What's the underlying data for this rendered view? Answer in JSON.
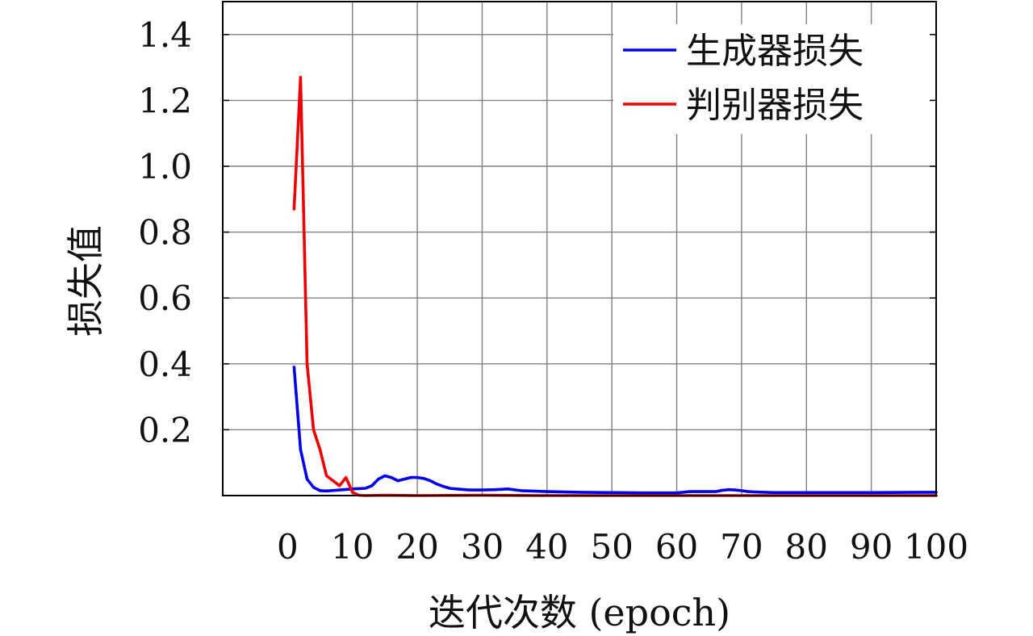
{
  "chart_data": {
    "type": "line",
    "title": "",
    "xlabel": "迭代次数 (epoch)",
    "ylabel": "损失值",
    "xlim": [
      0,
      100
    ],
    "ylim": [
      0,
      1.5
    ],
    "x_ticks": [
      "0",
      "10",
      "20",
      "30",
      "40",
      "50",
      "60",
      "70",
      "80",
      "90",
      "100"
    ],
    "y_ticks": [
      "0.2",
      "0.4",
      "0.6",
      "0.8",
      "1.0",
      "1.2",
      "1.4"
    ],
    "grid": true,
    "legend": {
      "position": "top-right",
      "entries": [
        "生成器损失",
        "判别器损失"
      ]
    },
    "series": [
      {
        "name": "生成器损失",
        "color": "#0000ee",
        "x": [
          1,
          2,
          3,
          4,
          5,
          6,
          8,
          10,
          12,
          13,
          14,
          15,
          16,
          17,
          18,
          19,
          20,
          21,
          22,
          23,
          24,
          25,
          26,
          28,
          30,
          32,
          34,
          36,
          40,
          45,
          50,
          55,
          60,
          62,
          65,
          66,
          67,
          68,
          69,
          70,
          71,
          72,
          75,
          80,
          90,
          100
        ],
        "y": [
          0.39,
          0.14,
          0.05,
          0.025,
          0.015,
          0.014,
          0.017,
          0.02,
          0.022,
          0.03,
          0.05,
          0.06,
          0.055,
          0.045,
          0.05,
          0.055,
          0.055,
          0.052,
          0.045,
          0.035,
          0.028,
          0.022,
          0.02,
          0.017,
          0.017,
          0.018,
          0.02,
          0.015,
          0.012,
          0.01,
          0.009,
          0.008,
          0.008,
          0.012,
          0.012,
          0.012,
          0.016,
          0.018,
          0.017,
          0.015,
          0.012,
          0.011,
          0.009,
          0.009,
          0.009,
          0.01
        ]
      },
      {
        "name": "判别器损失",
        "color": "#ee0000",
        "x": [
          1,
          2,
          3,
          4,
          5,
          6,
          7,
          8,
          9,
          10,
          11,
          12,
          15,
          20,
          30,
          40,
          50,
          60,
          70,
          80,
          90,
          100
        ],
        "y": [
          0.87,
          1.27,
          0.4,
          0.2,
          0.14,
          0.06,
          0.045,
          0.03,
          0.055,
          0.01,
          0.001,
          0.0,
          0.001,
          0.0,
          0.001,
          0.0,
          0.0,
          0.0,
          0.0,
          0.0,
          0.0,
          0.0
        ]
      }
    ]
  }
}
